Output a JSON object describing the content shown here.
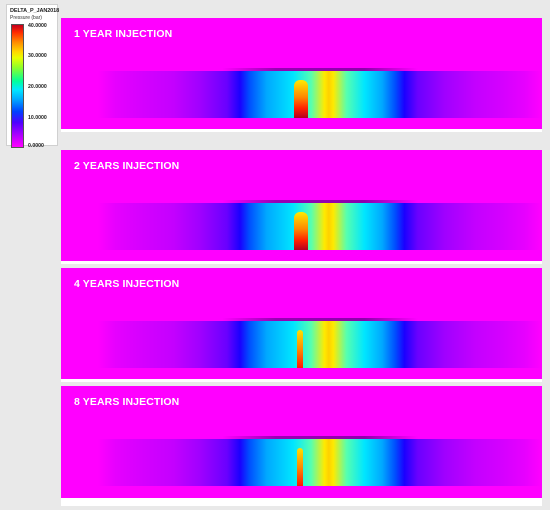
{
  "legend": {
    "title": "DELTA_P_JAN2018",
    "units": "Pressure (bar)",
    "ticks": [
      "40.0000",
      "30.0000",
      "20.0000",
      "10.0000",
      "0.0000"
    ],
    "colorbar_colors": [
      "#c4001d",
      "#ff8a00",
      "#ffd800",
      "#8cff2a",
      "#00e8ff",
      "#0040ff",
      "#9a00ff",
      "#ff00ff"
    ]
  },
  "panels": [
    {
      "title": "1 YEAR INJECTION"
    },
    {
      "title": "2 YEARS INJECTION"
    },
    {
      "title": "4 YEARS INJECTION"
    },
    {
      "title": "8 YEARS INJECTION"
    }
  ],
  "colors": {
    "background": "#ff00ff",
    "panel_text": "#ffffff"
  }
}
